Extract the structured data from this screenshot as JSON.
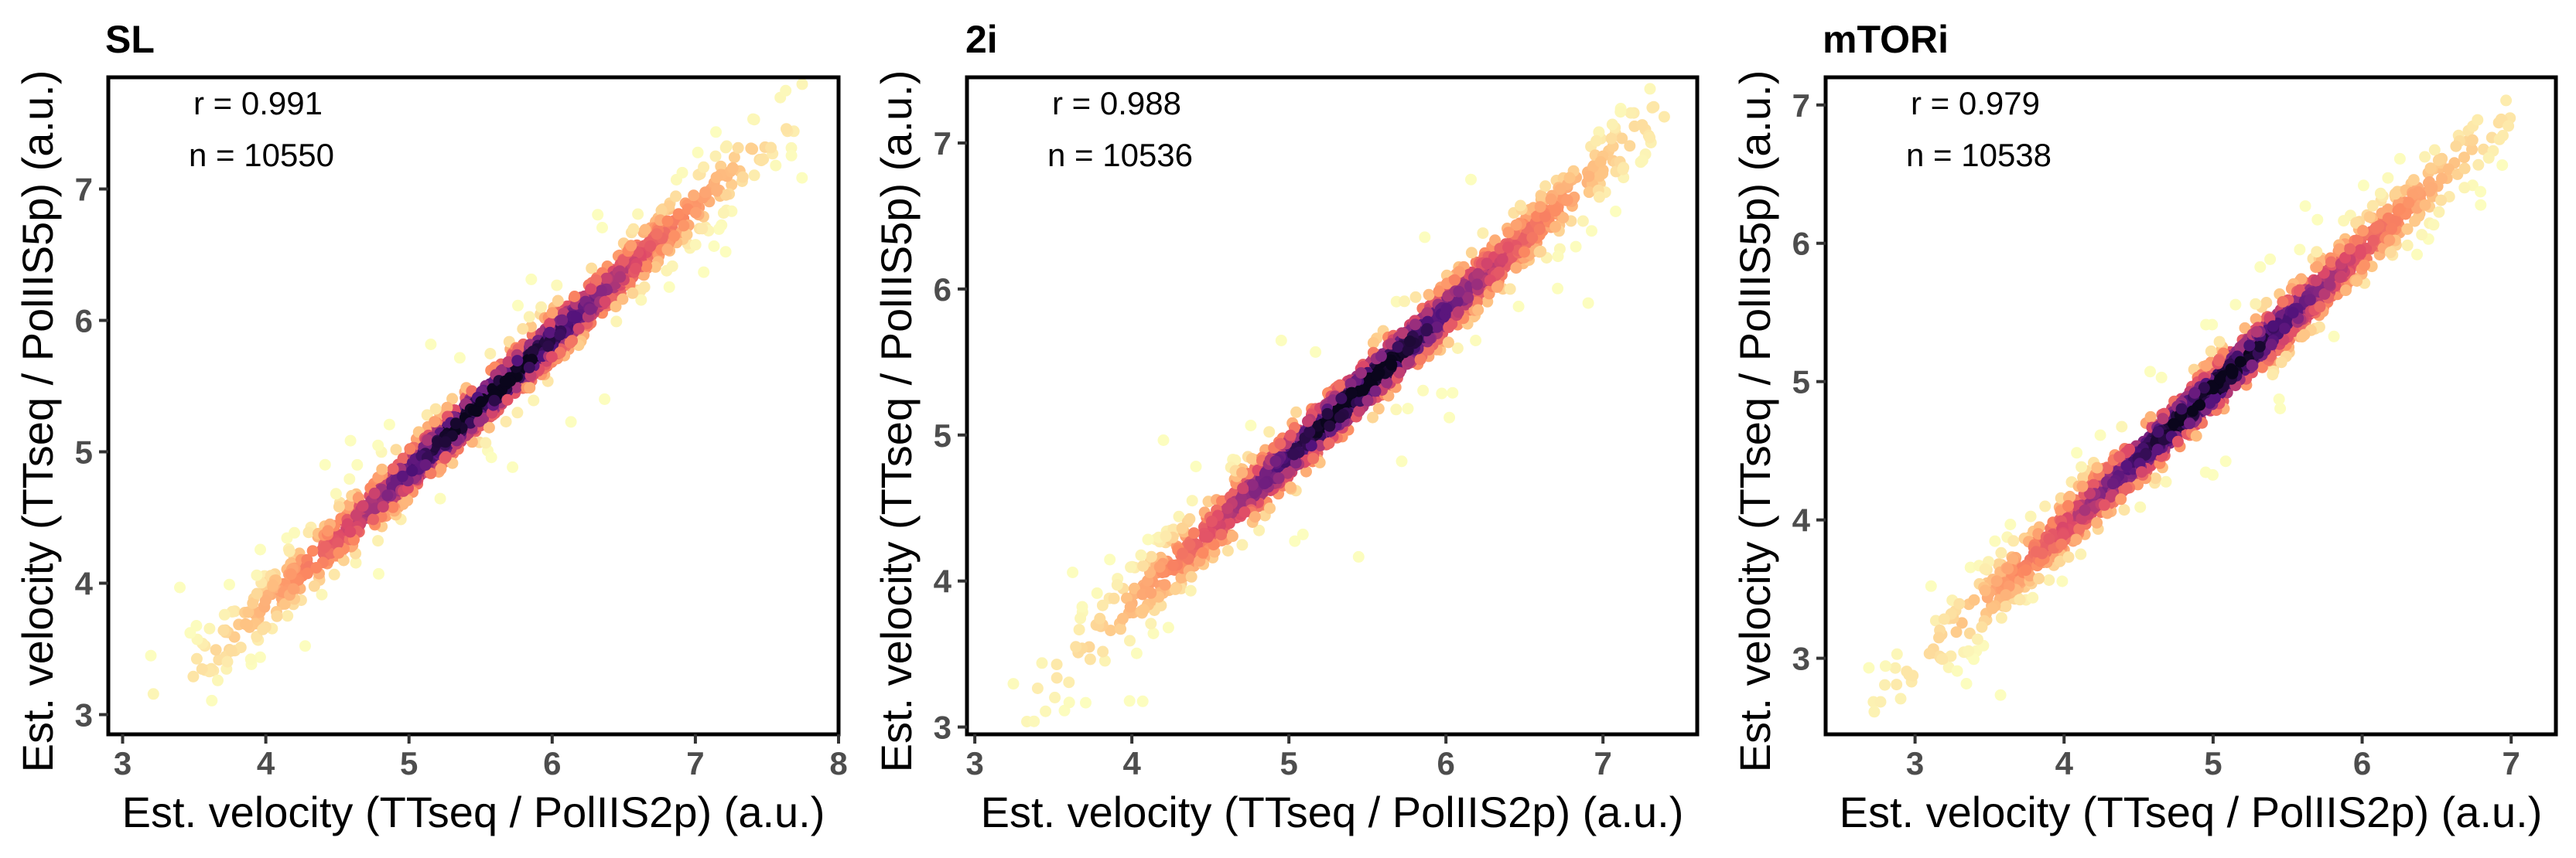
{
  "chart_data": [
    {
      "type": "scatter",
      "title": "SL",
      "xlabel": "Est. velocity (TTseq / PolIIS2p) (a.u.)",
      "ylabel": "Est. velocity (TTseq / PolIIS5p) (a.u.)",
      "xlim": [
        2.9,
        8.0
      ],
      "ylim": [
        2.85,
        7.85
      ],
      "xticks": [
        3,
        4,
        5,
        6,
        7,
        8
      ],
      "yticks": [
        3,
        4,
        5,
        6,
        7
      ],
      "r_label": "r = 0.991",
      "n_label": "n = 10550",
      "r": 0.991,
      "n": 10550,
      "fit": {
        "slope": 1.01,
        "intercept": -0.2,
        "xrange": [
          3.1,
          7.75
        ]
      },
      "color_scale": "magma (density)",
      "grid": false
    },
    {
      "type": "scatter",
      "title": "2i",
      "xlabel": "Est. velocity (TTseq / PolIIS2p) (a.u.)",
      "ylabel": "Est. velocity (TTseq / PolIIS5p) (a.u.)",
      "xlim": [
        2.95,
        7.6
      ],
      "ylim": [
        2.95,
        7.45
      ],
      "xticks": [
        3,
        4,
        5,
        6,
        7
      ],
      "yticks": [
        3,
        4,
        5,
        6,
        7
      ],
      "r_label": "r = 0.988",
      "n_label": "n = 10536",
      "r": 0.988,
      "n": 10536,
      "fit": {
        "slope": 1.0,
        "intercept": -0.15,
        "xrange": [
          3.2,
          7.4
        ]
      },
      "color_scale": "magma (density)",
      "grid": false
    },
    {
      "type": "scatter",
      "title": "mTORi",
      "xlabel": "Est. velocity (TTseq / PolIIS2p) (a.u.)",
      "ylabel": "Est. velocity (TTseq / PolIIS5p) (a.u.)",
      "xlim": [
        2.4,
        7.3
      ],
      "ylim": [
        2.45,
        7.2
      ],
      "xticks": [
        3,
        4,
        5,
        6,
        7
      ],
      "yticks": [
        3,
        4,
        5,
        6,
        7
      ],
      "r_label": "r = 0.979",
      "n_label": "n = 10538",
      "r": 0.979,
      "n": 10538,
      "fit": {
        "slope": 1.0,
        "intercept": -0.05,
        "xrange": [
          2.6,
          7.05
        ]
      },
      "color_scale": "magma (density)",
      "grid": false
    }
  ],
  "colors": {
    "density_low": "#fcfdbf",
    "density_mid_low": "#feaa74",
    "density_mid": "#e8526a",
    "density_mid_high": "#7e2482",
    "density_high": "#000004",
    "frame": "#000000",
    "tick_label": "#4d4d4d"
  }
}
